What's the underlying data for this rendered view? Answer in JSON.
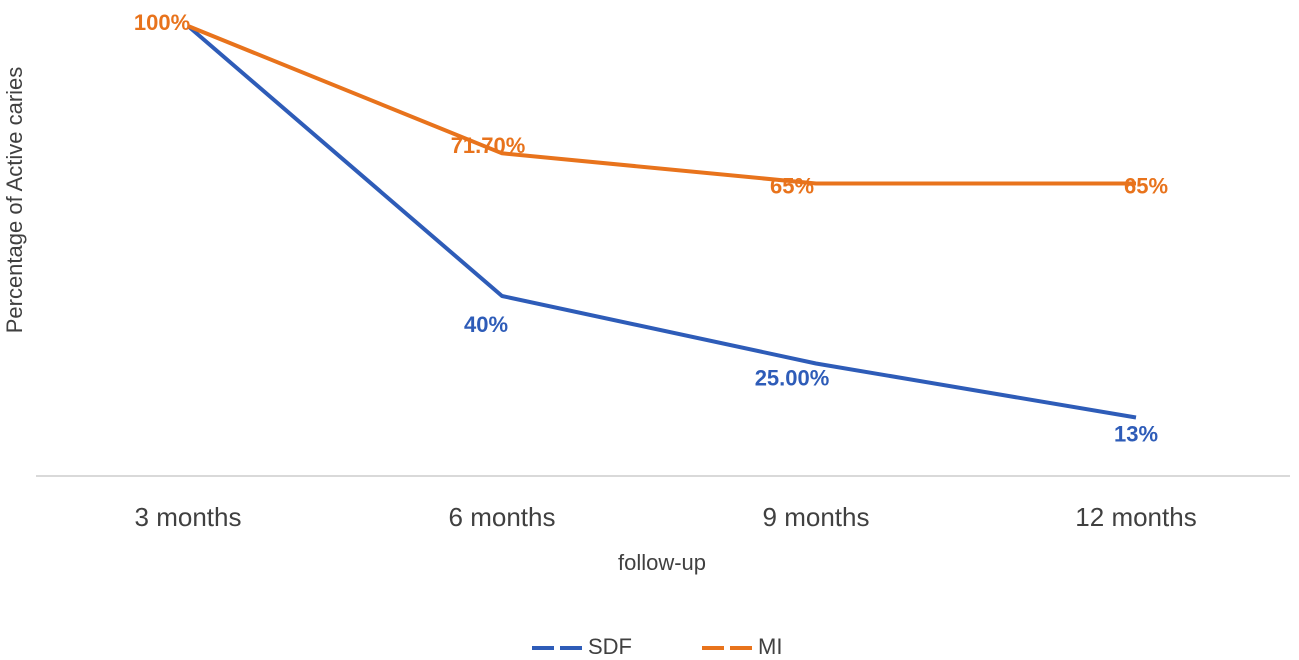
{
  "chart_data": {
    "type": "line",
    "title": "",
    "xlabel": "follow-up",
    "ylabel": "Percentage of Active caries",
    "categories": [
      "3 months",
      "6 months",
      "9 months",
      "12 months"
    ],
    "ylim": [
      0,
      100
    ],
    "grid": false,
    "legend": "bottom",
    "series": [
      {
        "name": "SDF",
        "color": "#2e5cb8",
        "values": [
          100,
          40,
          25,
          13
        ],
        "labels": [
          "",
          "40%",
          "25.00%",
          "13%"
        ]
      },
      {
        "name": "MI",
        "color": "#e8731c",
        "values": [
          100,
          71.7,
          65,
          65
        ],
        "labels": [
          "100%",
          "71.70%",
          "65%",
          "65%"
        ]
      }
    ]
  }
}
